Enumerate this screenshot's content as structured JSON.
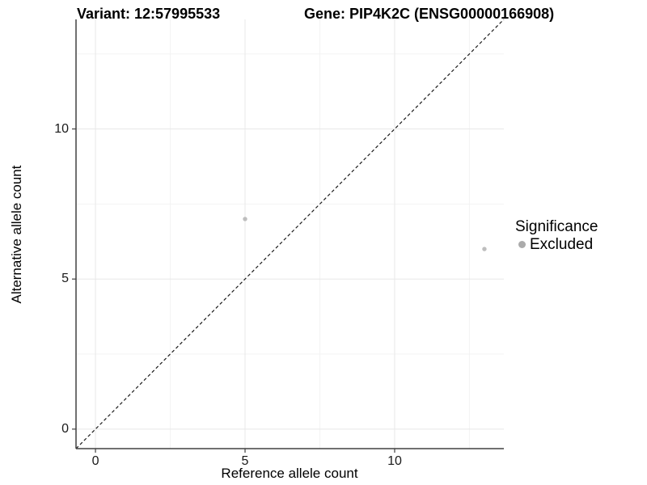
{
  "chart_data": {
    "type": "scatter",
    "titles": {
      "left": "Variant: 12:57995533",
      "right": "Gene: PIP4K2C (ENSG00000166908)"
    },
    "xlabel": "Reference allele count",
    "ylabel": "Alternative allele count",
    "xlim": [
      -0.65,
      13.65
    ],
    "ylim": [
      -0.65,
      13.65
    ],
    "x_major_ticks": [
      0,
      5,
      10
    ],
    "y_major_ticks": [
      0,
      5,
      10
    ],
    "x_minor_ticks": [
      2.5,
      7.5,
      12.5
    ],
    "y_minor_ticks": [
      2.5,
      7.5,
      12.5
    ],
    "grid": "major and minor gridlines, light gray on white",
    "series": [
      {
        "name": "Excluded",
        "color": "#bebebe",
        "points": [
          {
            "x": 5,
            "y": 7
          },
          {
            "x": 13,
            "y": 6
          }
        ]
      }
    ],
    "reference_line": {
      "type": "identity y=x",
      "style": "dashed",
      "color": "#1a1a1a"
    },
    "legend": {
      "position": "right",
      "title": "Significance",
      "items": [
        {
          "label": "Excluded",
          "color": "#ababab"
        }
      ]
    },
    "colors": {
      "background": "#ffffff",
      "grid_major": "#e8e8e8",
      "grid_minor": "#f3f3f3",
      "axis_line": "#404040",
      "tick_text": "#1a1a1a",
      "point": "#bebebe"
    }
  }
}
